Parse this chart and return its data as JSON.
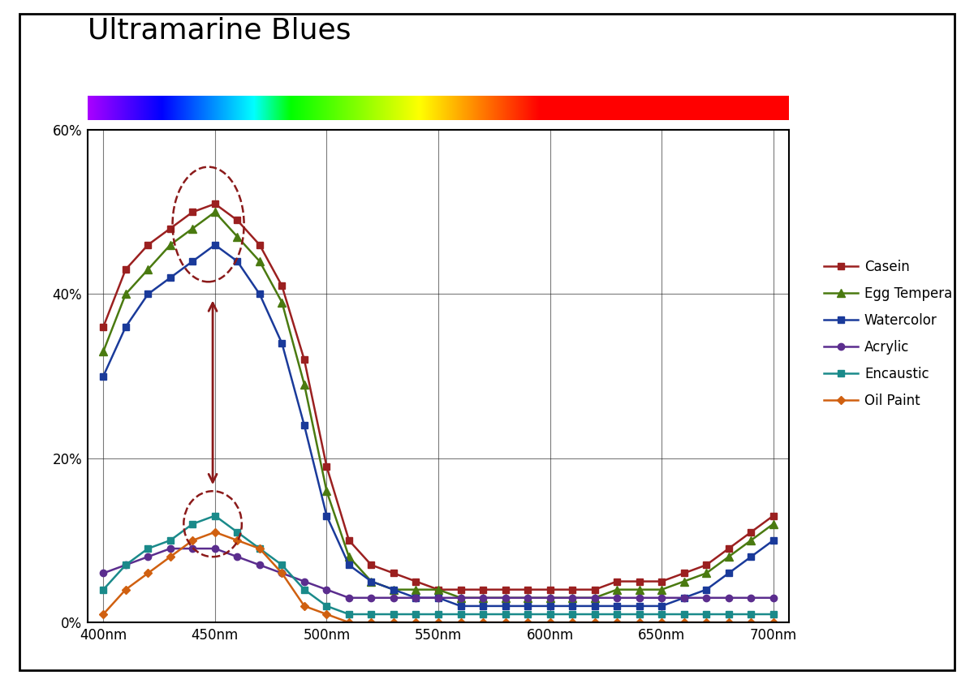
{
  "title": "Ultramarine Blues",
  "title_fontsize": 26,
  "x_values": [
    400,
    410,
    420,
    430,
    440,
    450,
    460,
    470,
    480,
    490,
    500,
    510,
    520,
    530,
    540,
    550,
    560,
    570,
    580,
    590,
    600,
    610,
    620,
    630,
    640,
    650,
    660,
    670,
    680,
    690,
    700
  ],
  "series": {
    "Casein": {
      "color": "#9B2020",
      "marker": "s",
      "values": [
        36,
        43,
        46,
        48,
        50,
        51,
        49,
        46,
        41,
        32,
        19,
        10,
        7,
        6,
        5,
        4,
        4,
        4,
        4,
        4,
        4,
        4,
        4,
        5,
        5,
        5,
        6,
        7,
        9,
        11,
        13
      ]
    },
    "Egg Tempera": {
      "color": "#4a7a10",
      "marker": "^",
      "values": [
        33,
        40,
        43,
        46,
        48,
        50,
        47,
        44,
        39,
        29,
        16,
        8,
        5,
        4,
        4,
        4,
        3,
        3,
        3,
        3,
        3,
        3,
        3,
        4,
        4,
        4,
        5,
        6,
        8,
        10,
        12
      ]
    },
    "Watercolor": {
      "color": "#1a3a9a",
      "marker": "s",
      "values": [
        30,
        36,
        40,
        42,
        44,
        46,
        44,
        40,
        34,
        24,
        13,
        7,
        5,
        4,
        3,
        3,
        2,
        2,
        2,
        2,
        2,
        2,
        2,
        2,
        2,
        2,
        3,
        4,
        6,
        8,
        10
      ]
    },
    "Acrylic": {
      "color": "#5b2d8e",
      "marker": "o",
      "values": [
        6,
        7,
        8,
        9,
        9,
        9,
        8,
        7,
        6,
        5,
        4,
        3,
        3,
        3,
        3,
        3,
        3,
        3,
        3,
        3,
        3,
        3,
        3,
        3,
        3,
        3,
        3,
        3,
        3,
        3,
        3
      ]
    },
    "Encaustic": {
      "color": "#1a8a8a",
      "marker": "s",
      "values": [
        4,
        7,
        9,
        10,
        12,
        13,
        11,
        9,
        7,
        4,
        2,
        1,
        1,
        1,
        1,
        1,
        1,
        1,
        1,
        1,
        1,
        1,
        1,
        1,
        1,
        1,
        1,
        1,
        1,
        1,
        1
      ]
    },
    "Oil Paint": {
      "color": "#d06010",
      "marker": "D",
      "values": [
        1,
        4,
        6,
        8,
        10,
        11,
        10,
        9,
        6,
        2,
        1,
        0,
        0,
        0,
        0,
        0,
        0,
        0,
        0,
        0,
        0,
        0,
        0,
        0,
        0,
        0,
        0,
        0,
        0,
        0,
        0
      ]
    }
  },
  "yticks": [
    0,
    20,
    40,
    60
  ],
  "ytick_labels": [
    "0%",
    "20%",
    "40%",
    "60%"
  ],
  "xticks": [
    400,
    450,
    500,
    550,
    600,
    650,
    700
  ],
  "xtick_labels": [
    "400nm",
    "450nm",
    "500nm",
    "550nm",
    "600nm",
    "650nm",
    "700nm"
  ],
  "ylim": [
    0,
    60
  ],
  "xlim": [
    393,
    707
  ],
  "grid_color": "#222222",
  "bg_color": "#ffffff",
  "border_color": "#000000",
  "arrow_color": "#8B1A1A",
  "spectrum_colors": [
    [
      0.0,
      "#7B0099"
    ],
    [
      0.08,
      "#5500CC"
    ],
    [
      0.17,
      "#2200DD"
    ],
    [
      0.27,
      "#1155BB"
    ],
    [
      0.37,
      "#006644"
    ],
    [
      0.43,
      "#007700"
    ],
    [
      0.5,
      "#22BB00"
    ],
    [
      0.57,
      "#88CC00"
    ],
    [
      0.63,
      "#FFEE00"
    ],
    [
      0.7,
      "#FFAA00"
    ],
    [
      0.8,
      "#FF4400"
    ],
    [
      0.9,
      "#EE0000"
    ],
    [
      1.0,
      "#CC0033"
    ]
  ]
}
